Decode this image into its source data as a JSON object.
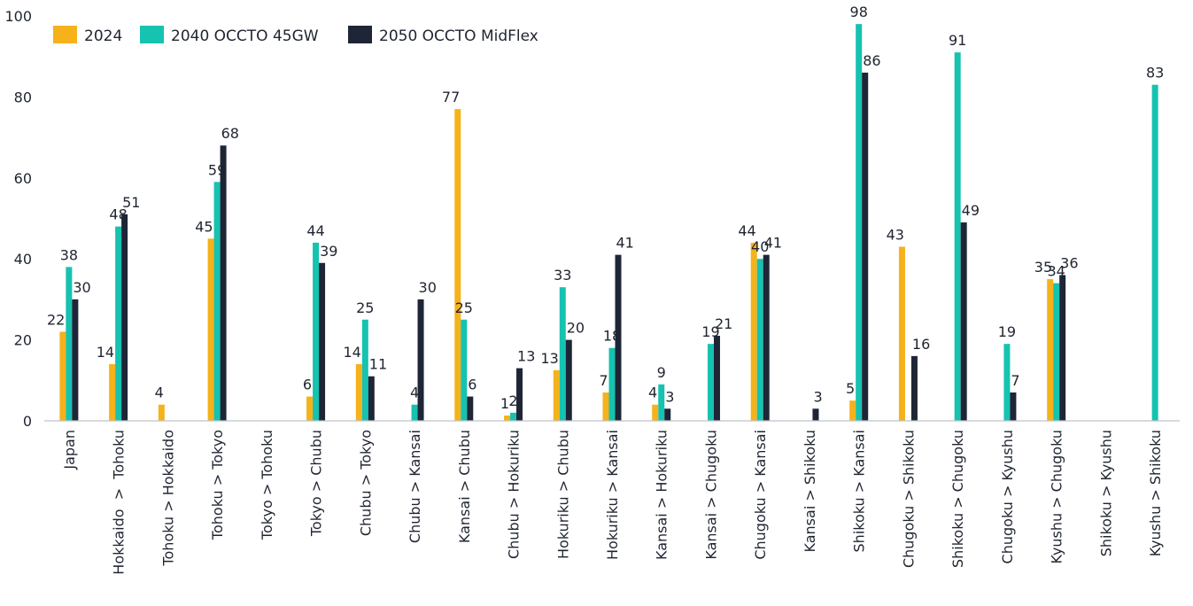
{
  "chart_data": {
    "type": "bar",
    "title": "",
    "xlabel": "",
    "ylabel": "",
    "ylim": [
      0,
      100
    ],
    "yticks": [
      0,
      20,
      40,
      60,
      80,
      100
    ],
    "grid": false,
    "legend_position": "top-left",
    "categories": [
      "Japan",
      "Hokkaido  >  Tohoku",
      "Tohoku > Hokkaido",
      "Tohoku > Tokyo",
      "Tokyo > Tohoku",
      "Tokyo > Chubu",
      "Chubu > Tokyo",
      "Chubu > Kansai",
      "Kansai > Chubu",
      "Chubu > Hokuriku",
      "Hokuriku > Chubu",
      "Hokuriku > Kansai",
      "Kansai > Hokuriku",
      "Kansai > Chugoku",
      "Chugoku > Kansai",
      "Kansai > Shikoku",
      "Shikoku > Kansai",
      "Chugoku > Shikoku",
      "Shikoku > Chugoku",
      "Chugoku > Kyushu",
      "Kyushu > Chugoku",
      "Shikoku > Kyushu",
      "Kyushu > Shikoku"
    ],
    "series": [
      {
        "name": "2024",
        "color": "#f5b21a",
        "values": [
          22,
          14,
          4,
          45,
          0,
          6,
          14,
          0,
          77,
          1.3,
          12.5,
          7,
          4,
          0,
          44,
          0,
          5,
          43,
          0,
          0,
          35,
          0,
          0
        ],
        "labels": [
          "22",
          "14",
          "4",
          "45",
          "",
          "6",
          "14",
          "",
          "77",
          "1",
          "13",
          "7",
          "4",
          "",
          "44",
          "",
          "5",
          "43",
          "",
          "",
          "35",
          "",
          ""
        ]
      },
      {
        "name": "2040 OCCTO 45GW",
        "color": "#16c2b0",
        "values": [
          38,
          48,
          0,
          59,
          0,
          44,
          25,
          4,
          25,
          2,
          33,
          18,
          9,
          19,
          40,
          0,
          98,
          0,
          91,
          19,
          34,
          0,
          83
        ],
        "labels": [
          "38",
          "48",
          "",
          "59",
          "",
          "44",
          "25",
          "4",
          "25",
          "2",
          "33",
          "18",
          "9",
          "19",
          "40",
          "",
          "98",
          "",
          "91",
          "19",
          "34",
          "",
          "83"
        ]
      },
      {
        "name": "2050 OCCTO MidFlex",
        "color": "#1e2536",
        "values": [
          30,
          51,
          0,
          68,
          0,
          39,
          11,
          30,
          6,
          13,
          20,
          41,
          3,
          21,
          41,
          3,
          86,
          16,
          49,
          7,
          36,
          0,
          0
        ],
        "labels": [
          "30",
          "51",
          "",
          "68",
          "",
          "39",
          "11",
          "30",
          "6",
          "13",
          "20",
          "41",
          "3",
          "21",
          "41",
          "3",
          "86",
          "16",
          "49",
          "7",
          "36",
          "",
          ""
        ]
      }
    ]
  }
}
